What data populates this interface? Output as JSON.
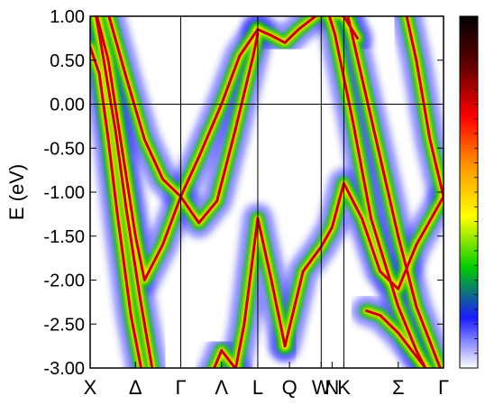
{
  "chart_data": {
    "type": "heatmap",
    "title": "",
    "xlabel": "",
    "ylabel": "E (eV)",
    "ylim": [
      -3.0,
      1.0
    ],
    "y_ticks": [
      "1.00",
      "0.50",
      "0.00",
      "-0.50",
      "-1.00",
      "-1.50",
      "-2.00",
      "-2.50",
      "-3.00"
    ],
    "y_tick_values": [
      1.0,
      0.5,
      0.0,
      -0.5,
      -1.0,
      -1.5,
      -2.0,
      -2.5,
      -3.0
    ],
    "k_labels": [
      "X",
      "Δ",
      "Γ",
      "Λ",
      "L",
      "Q",
      "W",
      "N",
      "K",
      "Σ",
      "Γ"
    ],
    "k_positions": [
      0.0,
      0.5,
      1.0,
      1.45,
      1.85,
      2.2,
      2.55,
      2.67,
      2.8,
      3.4,
      3.9
    ],
    "k_range": [
      0.0,
      3.9
    ],
    "vertical_lines_at": [
      1.0,
      1.85,
      2.55,
      2.8
    ],
    "fermi_level": 0.0,
    "grid": false,
    "legend": "colorbar-right",
    "colorscale": [
      "#ffffff",
      "#1a1aff",
      "#00cc00",
      "#ffff00",
      "#ff9900",
      "#ff0000",
      "#660000",
      "#000000"
    ],
    "band_color": "#c40000",
    "bands": [
      {
        "k": [
          0.0,
          0.1,
          0.2,
          0.3,
          0.45,
          0.6
        ],
        "E": [
          0.65,
          0.35,
          -0.4,
          -1.25,
          -2.4,
          -3.2
        ]
      },
      {
        "k": [
          0.05,
          0.15,
          0.28,
          0.4,
          0.55,
          0.7
        ],
        "E": [
          1.1,
          0.5,
          -0.3,
          -1.2,
          -2.2,
          -3.1
        ]
      },
      {
        "k": [
          0.0,
          0.2,
          0.35,
          0.5,
          0.6,
          0.8,
          1.0,
          1.2,
          1.45,
          1.65,
          1.85
        ],
        "E": [
          1.3,
          0.5,
          -0.5,
          -1.5,
          -2.0,
          -1.6,
          -1.05,
          -0.6,
          0.0,
          0.55,
          0.85
        ]
      },
      {
        "k": [
          0.18,
          0.4,
          0.6,
          0.8,
          1.0,
          1.2,
          1.4,
          1.6,
          1.8,
          1.85
        ],
        "E": [
          1.1,
          0.3,
          -0.4,
          -0.85,
          -1.05,
          -1.35,
          -1.1,
          -0.3,
          0.55,
          0.8
        ]
      },
      {
        "k": [
          1.85,
          2.0,
          2.15,
          2.3,
          2.55,
          2.8,
          2.95
        ],
        "E": [
          0.85,
          0.78,
          0.7,
          0.85,
          1.05,
          1.0,
          0.75
        ]
      },
      {
        "k": [
          1.55,
          1.7,
          1.85,
          2.0,
          2.15
        ],
        "E": [
          -3.3,
          -2.5,
          -1.3,
          -2.0,
          -2.75
        ]
      },
      {
        "k": [
          2.15,
          2.35,
          2.55,
          2.67,
          2.8,
          3.0,
          3.2,
          3.4,
          3.6,
          3.9
        ],
        "E": [
          -2.75,
          -1.9,
          -1.62,
          -1.4,
          -0.9,
          -1.3,
          -1.9,
          -2.1,
          -1.6,
          -1.05
        ]
      },
      {
        "k": [
          2.8,
          3.0,
          3.2,
          3.4,
          3.6,
          3.9
        ],
        "E": [
          1.2,
          0.3,
          -0.6,
          -1.5,
          -2.3,
          -3.1
        ]
      },
      {
        "k": [
          2.55,
          2.7,
          2.9,
          3.1,
          3.4,
          3.6,
          3.75
        ],
        "E": [
          1.3,
          0.8,
          -0.2,
          -1.3,
          -2.3,
          -2.8,
          -3.1
        ]
      },
      {
        "k": [
          3.45,
          3.6,
          3.75,
          3.9
        ],
        "E": [
          1.2,
          0.5,
          -0.4,
          -1.05
        ]
      },
      {
        "k": [
          3.05,
          3.2,
          3.4,
          3.55,
          3.7,
          3.9
        ],
        "E": [
          -2.35,
          -2.4,
          -2.6,
          -2.8,
          -3.0,
          -3.2
        ]
      },
      {
        "k": [
          1.25,
          1.45,
          1.6,
          1.7
        ],
        "E": [
          -3.3,
          -2.8,
          -3.0,
          -3.3
        ]
      }
    ]
  }
}
